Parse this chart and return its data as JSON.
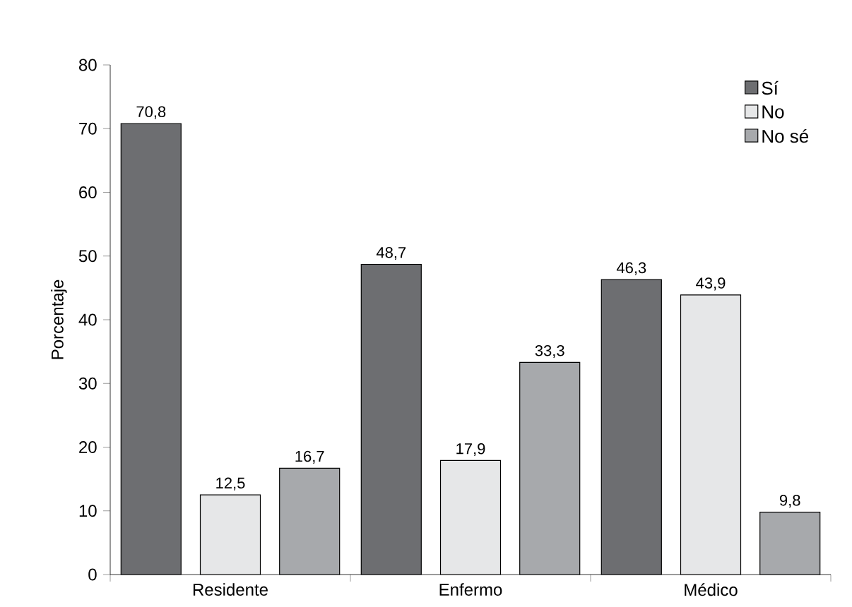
{
  "chart_data": {
    "type": "bar",
    "ylabel": "Porcentaje",
    "categories": [
      "Residente",
      "Enfermo",
      "Médico"
    ],
    "series": [
      {
        "name": "Sí",
        "color": "#6d6e71",
        "values": [
          70.8,
          48.7,
          46.3
        ],
        "value_labels": [
          "70,8",
          "48,7",
          "46,3"
        ]
      },
      {
        "name": "No",
        "color": "#e6e7e8",
        "values": [
          12.5,
          17.9,
          43.9
        ],
        "value_labels": [
          "12,5",
          "17,9",
          "43,9"
        ]
      },
      {
        "name": "No sé",
        "color": "#a7a9ac",
        "values": [
          16.7,
          33.3,
          9.8
        ],
        "value_labels": [
          "16,7",
          "33,3",
          "9,8"
        ]
      }
    ],
    "ylim": [
      0,
      80
    ],
    "yticks": [
      0,
      10,
      20,
      30,
      40,
      50,
      60,
      70,
      80
    ],
    "grid": false,
    "legend": "top right"
  }
}
